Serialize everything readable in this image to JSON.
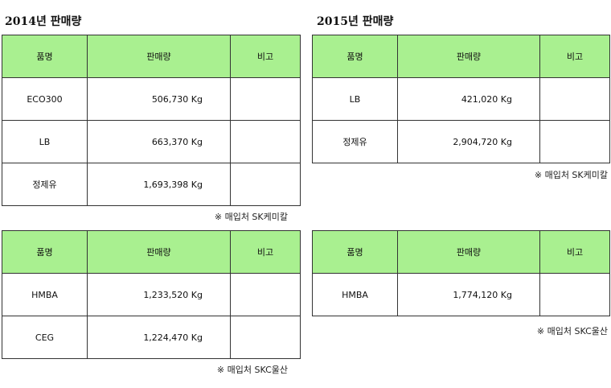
{
  "sections": {
    "y2014": {
      "title": "2014년 판매량",
      "headers": {
        "product": "품명",
        "sales": "판매량",
        "remarks": "비고"
      },
      "table1": {
        "rows": [
          {
            "product": "ECO300",
            "sales": "506,730 Kg",
            "remarks": ""
          },
          {
            "product": "LB",
            "sales": "663,370 Kg",
            "remarks": ""
          },
          {
            "product": "정제유",
            "sales": "1,693,398 Kg",
            "remarks": ""
          }
        ],
        "note": "※ 매입처 SK케미칼"
      },
      "table2": {
        "rows": [
          {
            "product": "HMBA",
            "sales": "1,233,520 Kg",
            "remarks": ""
          },
          {
            "product": "CEG",
            "sales": "1,224,470 Kg",
            "remarks": ""
          }
        ],
        "note": "※ 매입처 SKC울산"
      }
    },
    "y2015": {
      "title": "2015년 판매량",
      "headers": {
        "product": "품명",
        "sales": "판매량",
        "remarks": "비고"
      },
      "table1": {
        "rows": [
          {
            "product": "LB",
            "sales": "421,020 Kg",
            "remarks": ""
          },
          {
            "product": "정제유",
            "sales": "2,904,720 Kg",
            "remarks": ""
          }
        ],
        "note": "※ 매입처 SK케미칼"
      },
      "table2": {
        "rows": [
          {
            "product": "HMBA",
            "sales": "1,774,120 Kg",
            "remarks": ""
          }
        ],
        "note": "※ 매입처 SKC울산"
      }
    }
  },
  "colors": {
    "header_bg": "#a9f090",
    "border": "#333333"
  }
}
